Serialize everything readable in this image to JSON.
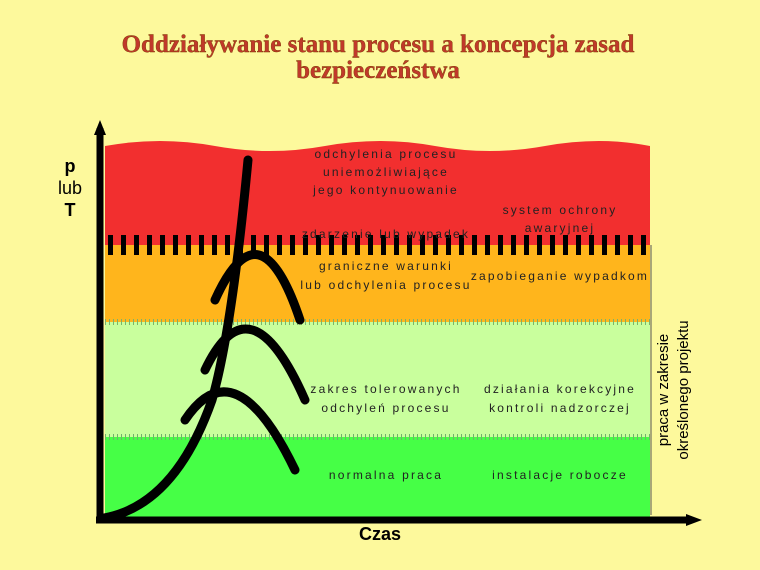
{
  "header": {
    "title": [
      "Oddziaływanie stanu procesu a koncepcja zasad",
      "bezpieczeństwa"
    ]
  },
  "axes": {
    "y_label": [
      "p",
      "lub",
      "T"
    ],
    "x_label": "Czas",
    "right_label": [
      "praca w zakresie",
      "określonego projektu"
    ]
  },
  "zones": [
    {
      "left": [
        "odchylenia procesu",
        "uniemożliwiające",
        "jego kontynuowanie"
      ],
      "right": [
        "system ochrony",
        "awaryjnej"
      ]
    },
    {
      "boundary": "zdarzenie lub wypadek"
    },
    {
      "left": [
        "graniczne warunki",
        "lub odchylenia procesu"
      ],
      "right": [
        "zapobieganie wypadkom"
      ]
    },
    {
      "left": [
        "zakres tolerowanych",
        "odchyleń procesu"
      ],
      "right": [
        "działania korekcyjne",
        "kontroli nadzorczej"
      ]
    },
    {
      "left": [
        "normalna praca"
      ],
      "right": [
        "instalacje robocze"
      ]
    }
  ]
}
